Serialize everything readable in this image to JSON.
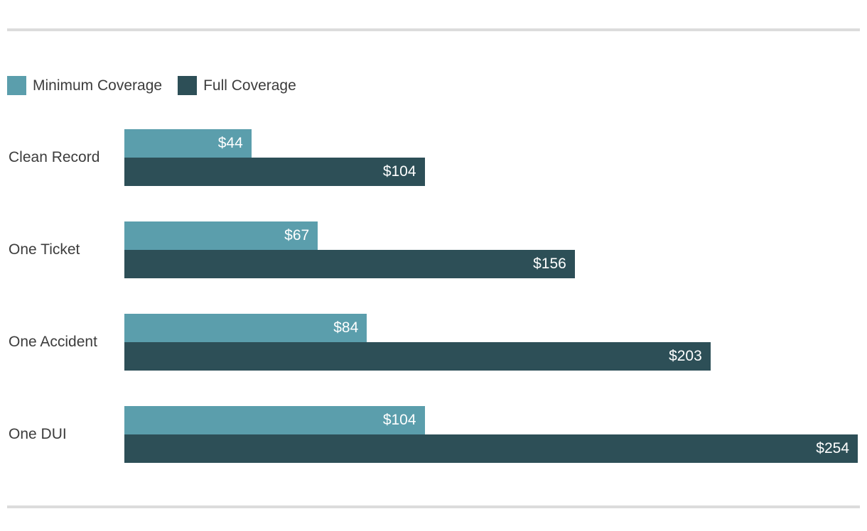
{
  "legend": {
    "items": [
      {
        "label": "Minimum Coverage",
        "color": "#5b9eac"
      },
      {
        "label": "Full Coverage",
        "color": "#2d4f57"
      }
    ]
  },
  "chart_data": {
    "type": "bar",
    "orientation": "horizontal",
    "title": "",
    "xlabel": "",
    "ylabel": "",
    "xlim": [
      0,
      254
    ],
    "grid": false,
    "legend_position": "top-left",
    "value_prefix": "$",
    "categories": [
      "Clean Record",
      "One Ticket",
      "One Accident",
      "One DUI"
    ],
    "series": [
      {
        "name": "Minimum Coverage",
        "color": "#5b9eac",
        "values": [
          44,
          67,
          84,
          104
        ]
      },
      {
        "name": "Full Coverage",
        "color": "#2d4f57",
        "values": [
          104,
          156,
          203,
          254
        ]
      }
    ],
    "display": [
      [
        "$44",
        "$104"
      ],
      [
        "$67",
        "$156"
      ],
      [
        "$84",
        "$203"
      ],
      [
        "$104",
        "$254"
      ]
    ]
  },
  "style": {
    "divider_color": "#dcdcdc",
    "label_color": "#3c3c3c",
    "bar_value_color": "#ffffff",
    "background": "#ffffff"
  }
}
